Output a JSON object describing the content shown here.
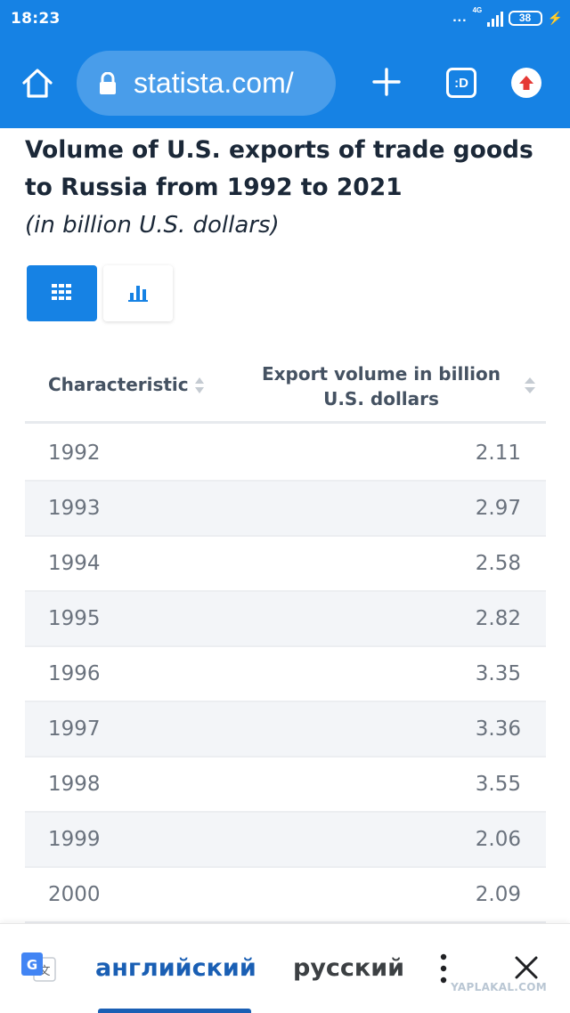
{
  "status_bar": {
    "time": "18:23",
    "dots": "...",
    "network": "4G",
    "battery": "38"
  },
  "browser": {
    "url": "statista.com/",
    "tab_label": ":D",
    "icons": [
      "home-icon",
      "lock-icon",
      "plus-icon",
      "tabs-icon",
      "update-icon"
    ]
  },
  "content": {
    "title": "Volume of U.S. exports of trade goods to Russia from 1992 to 2021",
    "subtitle": "(in billion U.S. dollars)",
    "view_toggle": {
      "active": "table",
      "icons": [
        "table-icon",
        "bar-chart-icon"
      ]
    },
    "table": {
      "col_characteristic": "Characteristic",
      "col_value": "Export volume in billion U.S. dollars",
      "rows": [
        {
          "year": "1992",
          "value": "2.11"
        },
        {
          "year": "1993",
          "value": "2.97"
        },
        {
          "year": "1994",
          "value": "2.58"
        },
        {
          "year": "1995",
          "value": "2.82"
        },
        {
          "year": "1996",
          "value": "3.35"
        },
        {
          "year": "1997",
          "value": "3.36"
        },
        {
          "year": "1998",
          "value": "3.55"
        },
        {
          "year": "1999",
          "value": "2.06"
        },
        {
          "year": "2000",
          "value": "2.09"
        }
      ]
    }
  },
  "translate_bar": {
    "source_lang": "английский",
    "target_lang": "русский",
    "active": "source_lang"
  },
  "watermark": "YAPLAKAL.COM",
  "colors": {
    "accent": "#1682e4",
    "title": "#1b2838",
    "translate_active": "#1a5fb4"
  }
}
